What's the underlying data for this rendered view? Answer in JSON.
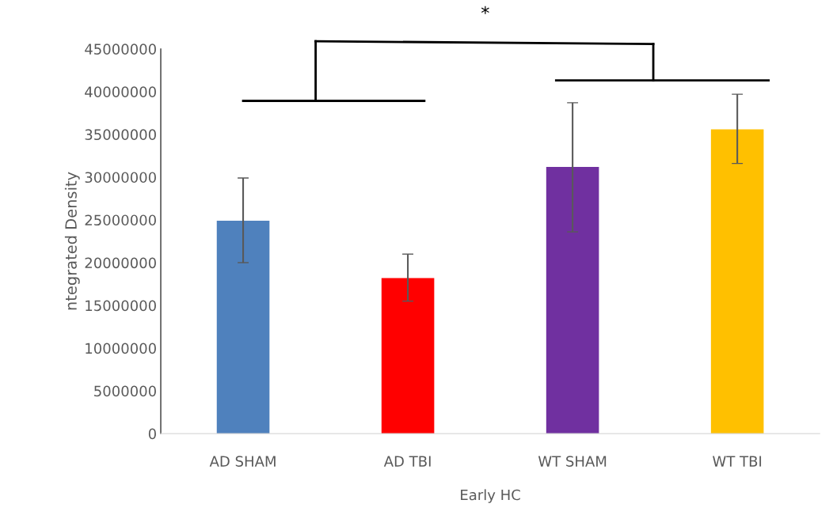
{
  "chart_data": {
    "type": "bar",
    "ylabel": "ntegrated Density",
    "xlabel": "Early HC",
    "categories": [
      "AD SHAM",
      "AD TBI",
      "WT SHAM",
      "WT TBI"
    ],
    "values": [
      24900000,
      18200000,
      31200000,
      35600000
    ],
    "errors": [
      [
        20000000,
        29900000
      ],
      [
        15500000,
        21000000
      ],
      [
        23600000,
        38700000
      ],
      [
        31600000,
        39700000
      ]
    ],
    "colors": [
      "#4f81bd",
      "#ff0000",
      "#7030a0",
      "#ffc000"
    ],
    "ylim": [
      0,
      45000000
    ],
    "yticks": [
      0,
      5000000,
      10000000,
      15000000,
      20000000,
      25000000,
      30000000,
      35000000,
      40000000,
      45000000
    ],
    "grid": false,
    "legend": false,
    "annotations": [
      "*"
    ]
  }
}
